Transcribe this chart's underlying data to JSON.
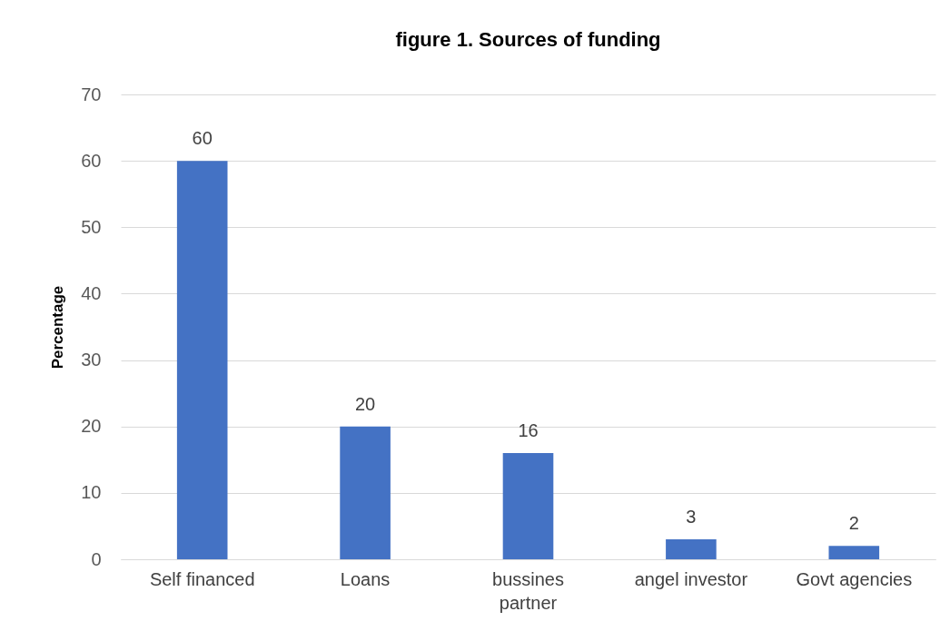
{
  "chart_data": {
    "type": "bar",
    "title": "figure 1. Sources of funding",
    "ylabel": "Percentage",
    "categories": [
      "Self financed",
      "Loans",
      "bussines partner",
      "angel investor",
      "Govt agencies"
    ],
    "values": [
      60,
      20,
      16,
      3,
      2
    ],
    "color": "#4472c4",
    "ylim": [
      0,
      70
    ],
    "yticks": [
      0,
      10,
      20,
      30,
      40,
      50,
      60,
      70
    ],
    "grid": "y",
    "data_labels": true
  }
}
